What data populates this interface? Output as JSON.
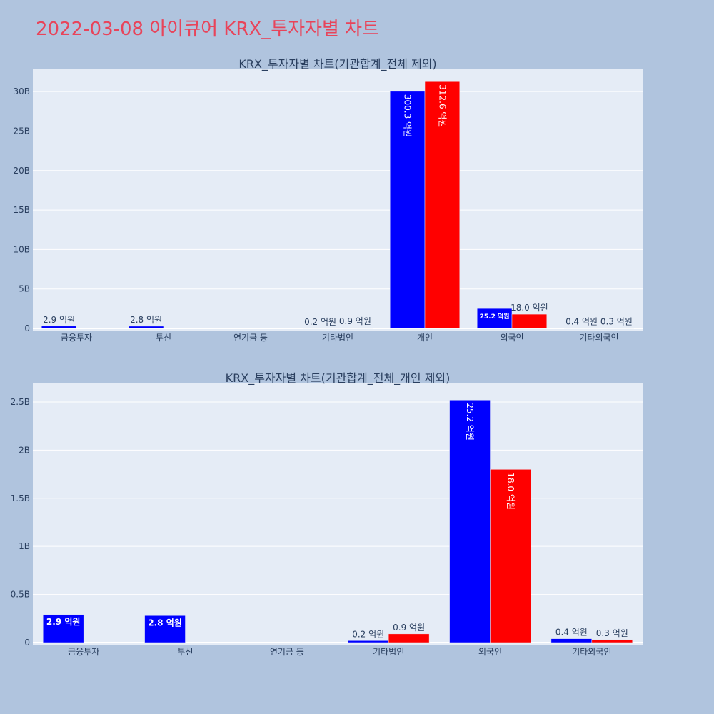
{
  "page": {
    "title": "2022-03-08 아이큐어 KRX_투자자별 차트",
    "title_color": "#e8445a",
    "background": "#b0c4de",
    "plot_background": "#e5ecf6"
  },
  "colors": {
    "buy": "#0000ff",
    "sell": "#ff0000"
  },
  "chart_data": [
    {
      "type": "bar",
      "title": "KRX_투자자별 차트(기관합계_전체 제외)",
      "categories": [
        "금융투자",
        "투신",
        "연기금 등",
        "기타법인",
        "개인",
        "외국인",
        "기타외국인"
      ],
      "series": [
        {
          "color": "#0000ff",
          "values": [
            290000000,
            280000000,
            0,
            20000000,
            30030000000,
            2520000000,
            40000000
          ],
          "labels": [
            "2.9 억원",
            "2.8 억원",
            "",
            "0.2 억원",
            "300.3 억원",
            "25.2 억원",
            "0.4 억원"
          ]
        },
        {
          "color": "#ff0000",
          "values": [
            0,
            0,
            0,
            90000000,
            31260000000,
            1800000000,
            30000000
          ],
          "labels": [
            "",
            "",
            "",
            "0.9 억원",
            "312.6 억원",
            "18.0 억원",
            "0.3 억원"
          ]
        }
      ],
      "ylim": [
        0,
        33000000000
      ],
      "yticks": [
        0,
        5000000000,
        10000000000,
        15000000000,
        20000000000,
        25000000000,
        30000000000
      ],
      "ytick_labels": [
        "0",
        "5B",
        "10B",
        "15B",
        "20B",
        "25B",
        "30B"
      ],
      "grid": true
    },
    {
      "type": "bar",
      "title": "KRX_투자자별 차트(기관합계_전체_개인 제외)",
      "categories": [
        "금융투자",
        "투신",
        "연기금 등",
        "기타법인",
        "외국인",
        "기타외국인"
      ],
      "series": [
        {
          "color": "#0000ff",
          "values": [
            290000000,
            280000000,
            0,
            20000000,
            2520000000,
            40000000
          ],
          "labels": [
            "2.9 억원",
            "2.8 억원",
            "",
            "0.2 억원",
            "25.2 억원",
            "0.4 억원"
          ]
        },
        {
          "color": "#ff0000",
          "values": [
            0,
            0,
            0,
            90000000,
            1800000000,
            30000000
          ],
          "labels": [
            "",
            "",
            "",
            "0.9 억원",
            "18.0 억원",
            "0.3 억원"
          ]
        }
      ],
      "ylim": [
        0,
        2700000000
      ],
      "yticks": [
        0,
        500000000,
        1000000000,
        1500000000,
        2000000000,
        2500000000
      ],
      "ytick_labels": [
        "0",
        "0.5B",
        "1B",
        "1.5B",
        "2B",
        "2.5B"
      ],
      "grid": true
    }
  ]
}
